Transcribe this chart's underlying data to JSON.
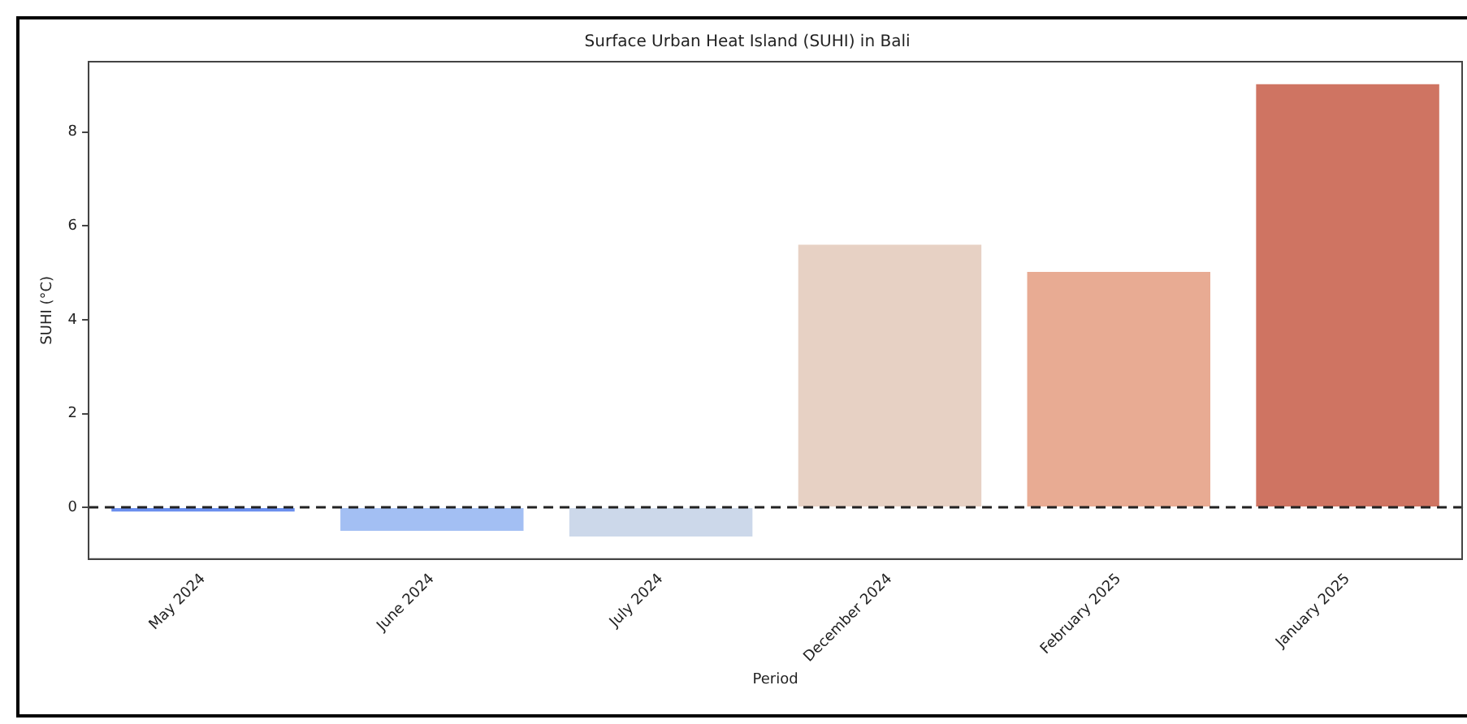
{
  "chart_data": {
    "type": "bar",
    "title": "Surface Urban Heat Island (SUHI) in Bali",
    "xlabel": "Period",
    "ylabel": "SUHI (°C)",
    "categories": [
      "May 2024",
      "June 2024",
      "July 2024",
      "December 2024",
      "February 2025",
      "January 2025"
    ],
    "values": [
      -0.09,
      -0.5,
      -0.62,
      5.6,
      5.02,
      9.02
    ],
    "colors": [
      "#6b8fee",
      "#a3bff3",
      "#ccd8ea",
      "#e7d1c4",
      "#e8ab93",
      "#cf7462"
    ],
    "ylim": [
      -1.1,
      9.5
    ],
    "yticks": [
      0,
      2,
      4,
      6,
      8
    ],
    "grid": false,
    "legend": false,
    "ref_lines": [
      {
        "axis": "y",
        "value": 0,
        "color": "#222222",
        "line_style": "dashed"
      }
    ]
  }
}
